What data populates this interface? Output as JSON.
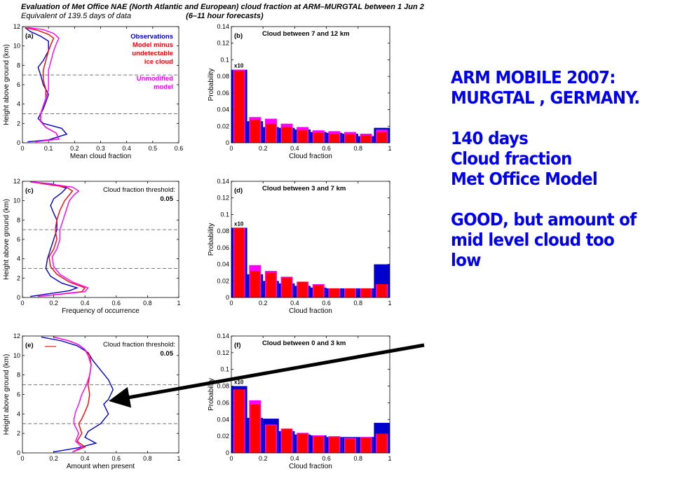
{
  "header": {
    "line1": "Evaluation of Met Office NAE (North Atlantic and European) cloud fraction at ARM–MURGTAL between 1 Jun 2",
    "line2": "Equivalent of 139.5 days of data",
    "line2b": "(6–11 hour forecasts)"
  },
  "side_text": {
    "lines": [
      "ARM MOBILE 2007:",
      "MURGTAL , GERMANY.",
      "",
      "140 days",
      "Cloud fraction",
      "Met Office Model",
      "",
      "GOOD, but amount of",
      "mid level cloud too",
      "low"
    ]
  },
  "colors": {
    "observations": "#0000cc",
    "model": "#ff0000",
    "unmodified": "#ff00ff",
    "annotation": "#0000ee",
    "arrow": "#000000"
  },
  "chart_data": [
    {
      "type": "line",
      "label": "(a)",
      "xlabel": "Mean cloud fraction",
      "ylabel": "Height above ground (km)",
      "xlim": [
        0,
        0.6
      ],
      "ylim": [
        0,
        12
      ],
      "xticks": [
        0,
        0.1,
        0.2,
        0.3,
        0.4,
        0.5,
        0.6
      ],
      "xticklabels": [
        "0",
        "0.1",
        "0.2",
        "0.3",
        "0.4",
        "0.5",
        "0.6"
      ],
      "yticks": [
        0,
        2,
        4,
        6,
        8,
        10,
        12
      ],
      "yticklabels": [
        "0",
        "2",
        "4",
        "6",
        "8",
        "10",
        "12"
      ],
      "hlines": [
        3,
        7
      ],
      "legend": [
        {
          "text": "Observations",
          "color": "#0000cc"
        },
        {
          "text": "Model minus",
          "color": "#ff0000"
        },
        {
          "text": "undetectable",
          "color": "#ff0000"
        },
        {
          "text": "ice cloud",
          "color": "#ff0000"
        },
        {
          "text": "",
          "color": "#ff0000"
        },
        {
          "text": "Unmodified",
          "color": "#ff00ff"
        },
        {
          "text": "model",
          "color": "#ff00ff"
        }
      ],
      "series": [
        {
          "name": "Observations",
          "color": "#0000cc",
          "x": [
            0.02,
            0.1,
            0.17,
            0.15,
            0.08,
            0.06,
            0.07,
            0.08,
            0.09,
            0.1,
            0.08,
            0.07,
            0.06,
            0.08,
            0.1,
            0.1,
            0.07,
            0.03,
            0.01
          ],
          "y": [
            0.1,
            0.3,
            0.9,
            1.5,
            2.0,
            2.5,
            3.0,
            3.5,
            4.2,
            5.0,
            6.0,
            7.0,
            7.8,
            8.5,
            9.5,
            10.5,
            11.0,
            11.5,
            11.9
          ]
        },
        {
          "name": "Model minus undetectable ice cloud",
          "color": "#ff0000",
          "x": [
            0.05,
            0.14,
            0.13,
            0.09,
            0.07,
            0.07,
            0.08,
            0.09,
            0.09,
            0.08,
            0.08,
            0.09,
            0.1,
            0.11,
            0.12,
            0.1,
            0.06,
            0.01
          ],
          "y": [
            0.1,
            0.4,
            1.0,
            1.6,
            2.2,
            3.0,
            3.8,
            4.6,
            5.5,
            6.5,
            7.5,
            8.5,
            9.5,
            10.2,
            10.8,
            11.2,
            11.6,
            11.9
          ]
        },
        {
          "name": "Unmodified model",
          "color": "#ff00ff",
          "x": [
            0.05,
            0.14,
            0.13,
            0.09,
            0.07,
            0.07,
            0.08,
            0.09,
            0.1,
            0.1,
            0.1,
            0.11,
            0.12,
            0.13,
            0.14,
            0.12,
            0.08,
            0.02
          ],
          "y": [
            0.1,
            0.4,
            1.0,
            1.6,
            2.2,
            3.0,
            3.8,
            4.6,
            5.5,
            6.5,
            7.5,
            8.5,
            9.5,
            10.2,
            10.8,
            11.3,
            11.7,
            11.9
          ]
        }
      ]
    },
    {
      "type": "line",
      "label": "(c)",
      "xlabel": "Frequency of occurrence",
      "ylabel": "Height above ground (km)",
      "xlim": [
        0,
        1
      ],
      "ylim": [
        0,
        12
      ],
      "xticks": [
        0,
        0.2,
        0.4,
        0.6,
        0.8,
        1
      ],
      "xticklabels": [
        "0",
        "0.2",
        "0.4",
        "0.6",
        "0.8",
        "1"
      ],
      "yticks": [
        0,
        2,
        4,
        6,
        8,
        10,
        12
      ],
      "yticklabels": [
        "0",
        "2",
        "4",
        "6",
        "8",
        "10",
        "12"
      ],
      "hlines": [
        3,
        7
      ],
      "annotation": [
        "Cloud fraction threshold:",
        "0.05"
      ],
      "series": [
        {
          "name": "Observations",
          "color": "#0000cc",
          "x": [
            0.05,
            0.3,
            0.35,
            0.25,
            0.18,
            0.15,
            0.16,
            0.18,
            0.2,
            0.22,
            0.22,
            0.2,
            0.18,
            0.2,
            0.25,
            0.28,
            0.2,
            0.05
          ],
          "y": [
            0.1,
            0.7,
            1.0,
            1.5,
            2.2,
            3.0,
            4.0,
            5.0,
            6.0,
            7.0,
            8.0,
            8.7,
            9.5,
            10.2,
            10.8,
            11.3,
            11.7,
            11.95
          ]
        },
        {
          "name": "Model minus undetectable ice cloud",
          "color": "#ff0000",
          "x": [
            0.1,
            0.38,
            0.4,
            0.3,
            0.22,
            0.18,
            0.17,
            0.2,
            0.22,
            0.21,
            0.22,
            0.24,
            0.27,
            0.3,
            0.32,
            0.28,
            0.15,
            0.05
          ],
          "y": [
            0.1,
            0.6,
            1.0,
            1.6,
            2.4,
            3.2,
            4.2,
            5.0,
            6.0,
            7.0,
            8.0,
            9.0,
            10.0,
            10.6,
            11.0,
            11.4,
            11.7,
            11.95
          ]
        },
        {
          "name": "Unmodified model",
          "color": "#ff00ff",
          "x": [
            0.1,
            0.4,
            0.42,
            0.32,
            0.24,
            0.2,
            0.19,
            0.22,
            0.24,
            0.24,
            0.26,
            0.28,
            0.3,
            0.33,
            0.36,
            0.32,
            0.18,
            0.06
          ],
          "y": [
            0.1,
            0.6,
            1.0,
            1.6,
            2.4,
            3.2,
            4.2,
            5.0,
            6.0,
            7.0,
            8.0,
            9.0,
            10.0,
            10.6,
            11.0,
            11.4,
            11.7,
            11.95
          ]
        }
      ]
    },
    {
      "type": "line",
      "label": "(e)",
      "xlabel": "Amount when present",
      "ylabel": "Height above ground (km)",
      "xlim": [
        0,
        1
      ],
      "ylim": [
        0,
        12
      ],
      "xticks": [
        0,
        0.2,
        0.4,
        0.6,
        0.8,
        1
      ],
      "xticklabels": [
        "0",
        "0.2",
        "0.4",
        "0.6",
        "0.8",
        "1"
      ],
      "yticks": [
        0,
        2,
        4,
        6,
        8,
        10,
        12
      ],
      "yticklabels": [
        "0",
        "2",
        "4",
        "6",
        "8",
        "10",
        "12"
      ],
      "hlines": [
        3,
        7
      ],
      "annotation": [
        "Cloud fraction threshold:",
        "0.05"
      ],
      "series": [
        {
          "name": "Observations",
          "color": "#0000cc",
          "x": [
            0.2,
            0.35,
            0.47,
            0.4,
            0.42,
            0.5,
            0.55,
            0.52,
            0.55,
            0.58,
            0.55,
            0.5,
            0.45,
            0.42,
            0.35,
            0.25,
            0.12
          ],
          "y": [
            0.1,
            0.5,
            1.0,
            1.6,
            2.2,
            3.0,
            4.0,
            5.0,
            5.5,
            6.5,
            7.5,
            8.5,
            9.5,
            10.3,
            11.0,
            11.5,
            11.9
          ]
        },
        {
          "name": "Model minus undetectable ice cloud",
          "color": "#ff0000",
          "x": [
            0.32,
            0.4,
            0.35,
            0.38,
            0.36,
            0.38,
            0.4,
            0.42,
            0.43,
            0.42,
            0.43,
            0.44,
            0.43,
            0.4,
            0.36,
            0.3,
            0.2
          ],
          "y": [
            0.1,
            0.6,
            1.2,
            2.0,
            3.0,
            3.5,
            4.2,
            5.0,
            6.0,
            7.0,
            8.0,
            9.0,
            10.0,
            10.6,
            11.1,
            11.5,
            11.9
          ]
        },
        {
          "name": "Unmodified model",
          "color": "#ff00ff",
          "x": [
            0.32,
            0.38,
            0.34,
            0.36,
            0.33,
            0.33,
            0.34,
            0.36,
            0.38,
            0.41,
            0.43,
            0.44,
            0.42,
            0.4,
            0.36,
            0.3,
            0.2
          ],
          "y": [
            0.1,
            0.6,
            1.2,
            2.0,
            3.0,
            3.5,
            4.2,
            5.0,
            6.0,
            7.0,
            8.0,
            9.0,
            10.0,
            10.6,
            11.1,
            11.5,
            11.9
          ]
        }
      ]
    },
    {
      "type": "bar",
      "label": "(b)",
      "title": "Cloud between 7 and 12 km",
      "xlabel": "Cloud fraction",
      "ylabel": "Probability",
      "xlim": [
        0,
        1
      ],
      "ylim": [
        0,
        0.14
      ],
      "xticks": [
        0,
        0.2,
        0.4,
        0.6,
        0.8,
        1
      ],
      "xticklabels": [
        "0",
        "0.2",
        "0.4",
        "0.6",
        "0.8",
        "1"
      ],
      "yticks": [
        0,
        0.02,
        0.04,
        0.06,
        0.08,
        0.1,
        0.12,
        0.14
      ],
      "yticklabels": [
        "0",
        "0.02",
        "0.04",
        "0.06",
        "0.08",
        "0.1",
        "0.12",
        "0.14"
      ],
      "first_bin_note": "x10",
      "bins": [
        0.05,
        0.15,
        0.25,
        0.35,
        0.45,
        0.55,
        0.65,
        0.75,
        0.85,
        0.95
      ],
      "series": [
        {
          "name": "Observations",
          "color": "#0000cc",
          "values": [
            0.088,
            0.026,
            0.019,
            0.018,
            0.016,
            0.013,
            0.012,
            0.011,
            0.008,
            0.018
          ]
        },
        {
          "name": "Unmodified model",
          "color": "#ff00ff",
          "values": [
            0.088,
            0.031,
            0.029,
            0.023,
            0.019,
            0.015,
            0.014,
            0.013,
            0.011,
            0.016
          ]
        },
        {
          "name": "Model minus undetectable ice cloud",
          "color": "#ff0000",
          "values": [
            0.087,
            0.028,
            0.023,
            0.019,
            0.015,
            0.012,
            0.011,
            0.01,
            0.009,
            0.013
          ]
        }
      ]
    },
    {
      "type": "bar",
      "label": "(d)",
      "title": "Cloud between 3 and 7 km",
      "xlabel": "Cloud fraction",
      "ylabel": "Probability",
      "xlim": [
        0,
        1
      ],
      "ylim": [
        0,
        0.14
      ],
      "xticks": [
        0,
        0.2,
        0.4,
        0.6,
        0.8,
        1
      ],
      "xticklabels": [
        "0",
        "0.2",
        "0.4",
        "0.6",
        "0.8",
        "1"
      ],
      "yticks": [
        0,
        0.02,
        0.04,
        0.06,
        0.08,
        0.1,
        0.12,
        0.14
      ],
      "yticklabels": [
        "0",
        "0.02",
        "0.04",
        "0.06",
        "0.08",
        "0.1",
        "0.12",
        "0.14"
      ],
      "first_bin_note": "x10",
      "bins": [
        0.05,
        0.15,
        0.25,
        0.35,
        0.45,
        0.55,
        0.65,
        0.75,
        0.85,
        0.95
      ],
      "series": [
        {
          "name": "Observations",
          "color": "#0000cc",
          "values": [
            0.084,
            0.028,
            0.02,
            0.017,
            0.014,
            0.012,
            0.011,
            0.011,
            0.011,
            0.04
          ]
        },
        {
          "name": "Unmodified model",
          "color": "#ff00ff",
          "values": [
            0.084,
            0.039,
            0.032,
            0.025,
            0.019,
            0.016,
            0.011,
            0.011,
            0.011,
            0.016
          ]
        },
        {
          "name": "Model minus undetectable ice cloud",
          "color": "#ff0000",
          "values": [
            0.084,
            0.032,
            0.03,
            0.024,
            0.019,
            0.015,
            0.011,
            0.011,
            0.011,
            0.016
          ]
        }
      ]
    },
    {
      "type": "bar",
      "label": "(f)",
      "title": "Cloud between 0 and 3 km",
      "xlabel": "Cloud fraction",
      "ylabel": "Probability",
      "xlim": [
        0,
        1
      ],
      "ylim": [
        0,
        0.14
      ],
      "xticks": [
        0,
        0.2,
        0.4,
        0.6,
        0.8,
        1
      ],
      "xticklabels": [
        "0",
        "0.2",
        "0.4",
        "0.6",
        "0.8",
        "1"
      ],
      "yticks": [
        0,
        0.02,
        0.04,
        0.06,
        0.08,
        0.1,
        0.12,
        0.14
      ],
      "yticklabels": [
        "0",
        "0.02",
        "0.04",
        "0.06",
        "0.08",
        "0.1",
        "0.12",
        "0.14"
      ],
      "first_bin_note": "x10",
      "bins": [
        0.05,
        0.15,
        0.25,
        0.35,
        0.45,
        0.55,
        0.65,
        0.75,
        0.85,
        0.95
      ],
      "series": [
        {
          "name": "Observations",
          "color": "#0000cc",
          "values": [
            0.08,
            0.042,
            0.041,
            0.026,
            0.022,
            0.021,
            0.019,
            0.019,
            0.019,
            0.036
          ]
        },
        {
          "name": "Unmodified model",
          "color": "#ff00ff",
          "values": [
            0.076,
            0.063,
            0.034,
            0.029,
            0.024,
            0.021,
            0.02,
            0.018,
            0.019,
            0.023
          ]
        },
        {
          "name": "Model minus undetectable ice cloud",
          "color": "#ff0000",
          "values": [
            0.076,
            0.058,
            0.033,
            0.029,
            0.023,
            0.02,
            0.019,
            0.017,
            0.018,
            0.023
          ]
        }
      ]
    }
  ]
}
